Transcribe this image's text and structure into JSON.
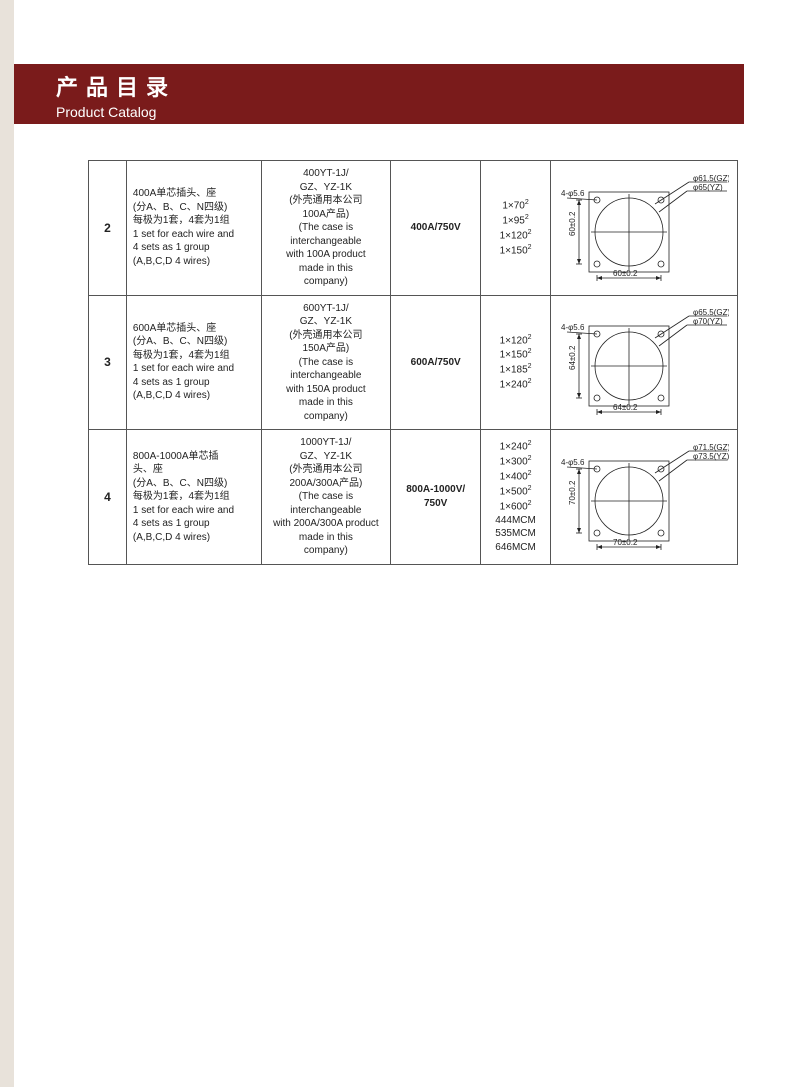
{
  "header": {
    "title_cn": "产品目录",
    "title_en": "Product Catalog"
  },
  "colors": {
    "band": "#7a1b1b",
    "band_text": "#ffffff",
    "margin": "#e8e2da",
    "border": "#555555",
    "text": "#222222",
    "bg": "#ffffff"
  },
  "table": {
    "rows": [
      {
        "num": "2",
        "desc": "400A单芯插头、座\n(分A、B、C、N四级)\n每极为1套，4套为1组\n1 set for each wire and\n4 sets as 1 group\n(A,B,C,D 4 wires)",
        "model": "400YT-1J/\nGZ、YZ-1K\n(外壳通用本公司\n100A产品)\n(The case is\ninterchangeable\nwith 100A product\nmade in this\ncompany)",
        "rating": "400A/750V",
        "spec": [
          "1×70²",
          "1×95²",
          "1×120²",
          "1×150²"
        ],
        "diagram": {
          "gz": "φ61.5(GZ)",
          "yz": "φ65(YZ)",
          "hole": "4-φ5.6",
          "h": "60±0.2",
          "w": "60±0.2"
        }
      },
      {
        "num": "3",
        "desc": "600A单芯插头、座\n(分A、B、C、N四级)\n每极为1套，4套为1组\n1 set for each wire and\n4 sets as 1 group\n(A,B,C,D 4 wires)",
        "model": "600YT-1J/\nGZ、YZ-1K\n(外壳通用本公司\n150A产品)\n(The case is\ninterchangeable\nwith 150A product\nmade in this\ncompany)",
        "rating": "600A/750V",
        "spec": [
          "1×120²",
          "1×150²",
          "1×185²",
          "1×240²"
        ],
        "diagram": {
          "gz": "φ65.5(GZ)",
          "yz": "φ70(YZ)",
          "hole": "4-φ5.6",
          "h": "64±0.2",
          "w": "64±0.2"
        }
      },
      {
        "num": "4",
        "desc": "800A-1000A单芯插\n头、座\n(分A、B、C、N四级)\n每极为1套，4套为1组\n1 set for each wire and\n4 sets as 1 group\n(A,B,C,D 4 wires)",
        "model": "1000YT-1J/\nGZ、YZ-1K\n(外壳通用本公司\n200A/300A产品)\n(The case is\ninterchangeable\nwith 200A/300A product\nmade in this\ncompany)",
        "rating": "800A-1000V/\n750V",
        "spec": [
          "1×240²",
          "1×300²",
          "1×400²",
          "1×500²",
          "1×600²",
          "444MCM",
          "535MCM",
          "646MCM"
        ],
        "diagram": {
          "gz": "φ71.5(GZ)",
          "yz": "φ73.5(YZ)",
          "hole": "4-φ5.6",
          "h": "70±0.2",
          "w": "70±0.2"
        }
      }
    ]
  }
}
